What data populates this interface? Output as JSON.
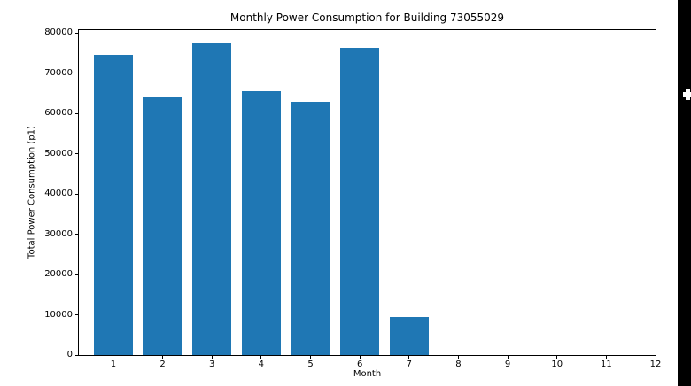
{
  "chart_data": {
    "type": "bar",
    "title": "Monthly Power Consumption for Building 73055029",
    "xlabel": "Month",
    "ylabel": "Total Power Consumption (p1)",
    "categories": [
      1,
      2,
      3,
      4,
      5,
      6,
      7
    ],
    "values": [
      74500,
      64100,
      77300,
      65500,
      62900,
      76300,
      9500
    ],
    "x_ticks": [
      1,
      2,
      3,
      4,
      5,
      6,
      7,
      8,
      9,
      10,
      11,
      12
    ],
    "y_ticks": [
      0,
      10000,
      20000,
      30000,
      40000,
      50000,
      60000,
      70000,
      80000
    ],
    "xlim": [
      0.3,
      12.0
    ],
    "ylim": [
      0,
      80700
    ],
    "bar_width": 0.8,
    "bar_color": "#1f77b4",
    "grid": false,
    "legend": null,
    "background_color": "#ffffff",
    "spine_color": "#000000"
  },
  "overlay": {
    "right_strip_color": "#000000",
    "plus_icon_color": "#ffffff"
  }
}
